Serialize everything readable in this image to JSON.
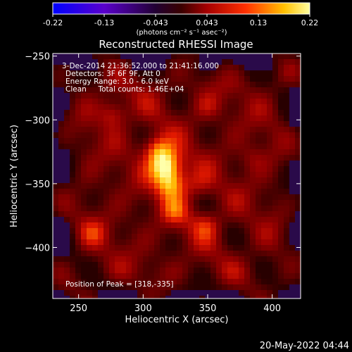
{
  "colorbar": {
    "ticks": [
      "-0.22",
      "-0.13",
      "-0.043",
      "0.043",
      "0.13",
      "0.22"
    ],
    "unit_label": "(photons cm⁻² s⁻¹ asec⁻²)"
  },
  "header": {
    "title": "Reconstructed RHESSI Image"
  },
  "info": {
    "line1": "3-Dec-2014 21:36:52.000 to 21:41:16.000",
    "line2": "Detectors: 3F 6F 9F, Att 0",
    "line3": "Energy Range: 3.0 - 6.0 keV",
    "line4": "Clean     Total counts: 1.46E+04",
    "peak": "Position of Peak = [318,-335]"
  },
  "footer": {
    "date": "20-May-2022 04:44"
  },
  "chart_data": {
    "type": "heatmap",
    "title": "Reconstructed RHESSI Image",
    "xlabel": "Heliocentric X (arcsec)",
    "ylabel": "Heliocentric Y (arcsec)",
    "xlim": [
      230,
      422
    ],
    "ylim": [
      -440,
      -248
    ],
    "xticks": [
      250,
      300,
      350,
      400
    ],
    "yticks": [
      -250,
      -300,
      -350,
      -400
    ],
    "xtick_labels": [
      "250",
      "300",
      "350",
      "400"
    ],
    "ytick_labels": [
      "−250",
      "−300",
      "−350",
      "−400"
    ],
    "colorbar_range": [
      -0.22,
      0.22
    ],
    "colormap": "red-temperature",
    "peak": [
      318,
      -335
    ],
    "sources": [
      {
        "x": 318,
        "y": -335,
        "intensity": 0.22
      },
      {
        "x": 322,
        "y": -350,
        "intensity": 0.17
      },
      {
        "x": 310,
        "y": -322,
        "intensity": 0.13
      },
      {
        "x": 277,
        "y": -295,
        "intensity": 0.1
      },
      {
        "x": 349,
        "y": -382,
        "intensity": 0.09
      },
      {
        "x": 325,
        "y": -372,
        "intensity": 0.08
      },
      {
        "x": 262,
        "y": -388,
        "intensity": 0.06
      },
      {
        "x": 343,
        "y": -352,
        "intensity": 0.06
      },
      {
        "x": 385,
        "y": -330,
        "intensity": 0.05
      },
      {
        "x": 350,
        "y": -290,
        "intensity": 0.05
      }
    ]
  }
}
